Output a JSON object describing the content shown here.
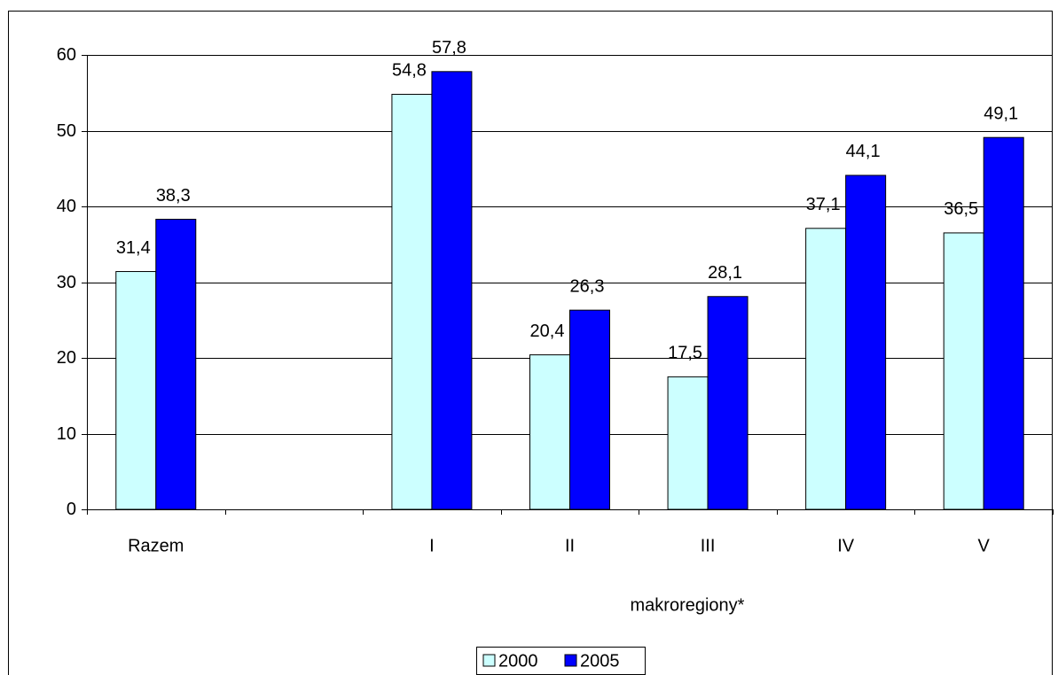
{
  "chart_data": {
    "type": "bar",
    "x_label": "makroregiony*",
    "categories": [
      "Razem",
      null,
      "I",
      "II",
      "III",
      "IV",
      "V"
    ],
    "series": [
      {
        "name": "2000",
        "color": "#ccffff",
        "values": [
          31.4,
          null,
          54.8,
          20.4,
          17.5,
          37.1,
          36.5
        ],
        "value_labels": [
          "31,4",
          null,
          "54,8",
          "20,4",
          "17,5",
          "37,1",
          "36,5"
        ]
      },
      {
        "name": "2005",
        "color": "#0000ff",
        "values": [
          38.3,
          null,
          57.8,
          26.3,
          28.1,
          44.1,
          49.1
        ],
        "value_labels": [
          "38,3",
          null,
          "57,8",
          "26,3",
          "28,1",
          "44,1",
          "49,1"
        ]
      }
    ],
    "ylim": [
      0,
      60
    ],
    "yticks": [
      0,
      10,
      20,
      30,
      40,
      50,
      60
    ],
    "grid": true,
    "legend": "bottom"
  }
}
